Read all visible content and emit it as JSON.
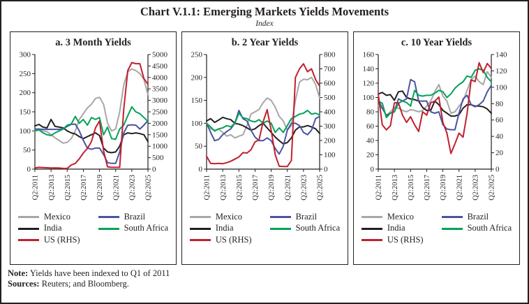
{
  "header": {
    "title": "Chart V.1.1: Emerging Markets Yields Movements",
    "subtitle": "Index"
  },
  "colors": {
    "mexico": "#a7a7aa",
    "india": "#231f20",
    "us": "#c0202e",
    "brazil": "#4b53a4",
    "south_africa": "#00a356",
    "axis": "#231f20"
  },
  "legend": {
    "items": [
      {
        "label": "Mexico",
        "color": "mexico"
      },
      {
        "label": "Brazil",
        "color": "brazil"
      },
      {
        "label": "India",
        "color": "india"
      },
      {
        "label": "South Africa",
        "color": "south_africa"
      },
      {
        "label": "US (RHS)",
        "color": "us"
      }
    ]
  },
  "notes": {
    "note_label": "Note:",
    "note_text": "Yields have been indexed to Q1 of 2011",
    "sources_label": "Sources:",
    "sources_text": "Reuters; and Bloomberg."
  },
  "chart_data": [
    {
      "type": "line",
      "title": "a. 3 Month Yields",
      "x_tick_labels": [
        "Q2:2011",
        "Q2:2013",
        "Q2:2015",
        "Q2:2017",
        "Q2:2019",
        "Q2:2021",
        "Q2:2023",
        "Q2:2025"
      ],
      "x_note": "29 semi-annual points from Q2 2011 to Q2 2025; tick labels every 2 years",
      "left_axis": {
        "min": 0,
        "max": 300,
        "step": 50
      },
      "right_axis": {
        "min": 0,
        "max": 5000,
        "step": 500
      },
      "series": [
        {
          "name": "Mexico",
          "color": "mexico",
          "axis": "left",
          "values": [
            100,
            102,
            100,
            98,
            90,
            82,
            75,
            68,
            70,
            80,
            100,
            130,
            145,
            160,
            170,
            185,
            188,
            170,
            120,
            100,
            105,
            150,
            220,
            255,
            262,
            258,
            250,
            235,
            195
          ]
        },
        {
          "name": "India",
          "color": "india",
          "axis": "left",
          "values": [
            113,
            117,
            110,
            108,
            130,
            112,
            110,
            108,
            100,
            95,
            92,
            85,
            80,
            85,
            90,
            95,
            88,
            55,
            45,
            43,
            45,
            60,
            90,
            95,
            93,
            95,
            93,
            90,
            72
          ]
        },
        {
          "name": "Brazil",
          "color": "brazil",
          "axis": "left",
          "values": [
            105,
            105,
            104,
            104,
            104,
            104,
            104,
            105,
            112,
            117,
            118,
            100,
            75,
            55,
            52,
            55,
            55,
            38,
            17,
            15,
            15,
            45,
            95,
            115,
            116,
            115,
            105,
            115,
            127
          ]
        },
        {
          "name": "South Africa",
          "color": "south_africa",
          "axis": "left",
          "values": [
            100,
            103,
            95,
            90,
            88,
            95,
            100,
            105,
            115,
            118,
            138,
            120,
            130,
            115,
            135,
            130,
            135,
            90,
            110,
            80,
            78,
            105,
            115,
            140,
            163,
            150,
            145,
            135,
            125
          ]
        },
        {
          "name": "US (RHS)",
          "color": "us",
          "axis": "right",
          "values": [
            50,
            80,
            70,
            60,
            50,
            55,
            50,
            30,
            30,
            180,
            250,
            450,
            700,
            900,
            1200,
            1800,
            2100,
            800,
            100,
            80,
            80,
            80,
            2600,
            4300,
            4650,
            4600,
            4600,
            3950,
            3700
          ]
        }
      ]
    },
    {
      "type": "line",
      "title": "b. 2 Year Yields",
      "x_tick_labels": [
        "Q2:2011",
        "Q2:2013",
        "Q2:2015",
        "Q2:2017",
        "Q2:2019",
        "Q2:2021",
        "Q2:2023",
        "Q2:2025"
      ],
      "x_note": "29 semi-annual points from Q2 2011 to Q2 2025; tick labels every 2 years",
      "left_axis": {
        "min": 0,
        "max": 250,
        "step": 50
      },
      "right_axis": {
        "min": 0,
        "max": 800,
        "step": 100
      },
      "series": [
        {
          "name": "Mexico",
          "color": "mexico",
          "axis": "left",
          "values": [
            100,
            88,
            85,
            87,
            80,
            72,
            75,
            68,
            72,
            75,
            95,
            120,
            125,
            130,
            145,
            155,
            150,
            135,
            115,
            105,
            85,
            95,
            150,
            190,
            196,
            195,
            200,
            185,
            155
          ]
        },
        {
          "name": "India",
          "color": "india",
          "axis": "left",
          "values": [
            105,
            110,
            102,
            107,
            113,
            110,
            108,
            100,
            98,
            95,
            90,
            85,
            88,
            95,
            100,
            90,
            80,
            70,
            62,
            55,
            58,
            68,
            85,
            92,
            92,
            95,
            92,
            88,
            78
          ]
        },
        {
          "name": "Brazil",
          "color": "brazil",
          "axis": "left",
          "values": [
            100,
            80,
            62,
            65,
            75,
            82,
            88,
            100,
            128,
            110,
            105,
            85,
            70,
            62,
            62,
            68,
            62,
            45,
            33,
            50,
            85,
            100,
            100,
            95,
            80,
            75,
            85,
            110,
            115
          ]
        },
        {
          "name": "South Africa",
          "color": "south_africa",
          "axis": "left",
          "values": [
            100,
            92,
            83,
            88,
            90,
            95,
            92,
            100,
            122,
            112,
            110,
            105,
            103,
            108,
            100,
            105,
            100,
            80,
            90,
            80,
            95,
            110,
            115,
            120,
            122,
            128,
            120,
            122,
            118
          ]
        },
        {
          "name": "US (RHS)",
          "color": "us",
          "axis": "right",
          "values": [
            90,
            40,
            38,
            40,
            38,
            45,
            55,
            70,
            85,
            115,
            112,
            135,
            190,
            205,
            330,
            415,
            270,
            100,
            20,
            18,
            18,
            60,
            640,
            700,
            735,
            680,
            700,
            625,
            580
          ]
        }
      ]
    },
    {
      "type": "line",
      "title": "c. 10 Year Yields",
      "x_tick_labels": [
        "Q2:2011",
        "Q2:2013",
        "Q2:2015",
        "Q2:2017",
        "Q2:2019",
        "Q2:2021",
        "Q2:2023",
        "Q2:2025"
      ],
      "x_note": "29 semi-annual points from Q2 2011 to Q2 2025; tick labels every 2 years",
      "left_axis": {
        "min": 0,
        "max": 160,
        "step": 20
      },
      "right_axis": {
        "min": 0,
        "max": 140,
        "step": 20
      },
      "series": [
        {
          "name": "Mexico",
          "color": "mexico",
          "axis": "left",
          "values": [
            88,
            85,
            75,
            80,
            86,
            85,
            82,
            80,
            83,
            82,
            80,
            82,
            88,
            95,
            108,
            118,
            102,
            95,
            78,
            80,
            88,
            95,
            110,
            125,
            130,
            122,
            118,
            136,
            128
          ]
        },
        {
          "name": "India",
          "color": "india",
          "axis": "left",
          "values": [
            105,
            107,
            103,
            104,
            96,
            108,
            109,
            100,
            98,
            97,
            95,
            86,
            82,
            82,
            95,
            90,
            82,
            78,
            74,
            74,
            76,
            85,
            90,
            90,
            88,
            88,
            87,
            84,
            78
          ]
        },
        {
          "name": "Brazil",
          "color": "brazil",
          "axis": "left",
          "values": [
            97,
            85,
            75,
            78,
            80,
            98,
            95,
            98,
            125,
            122,
            95,
            95,
            95,
            80,
            78,
            80,
            62,
            56,
            55,
            55,
            78,
            98,
            103,
            90,
            87,
            90,
            95,
            108,
            117
          ]
        },
        {
          "name": "South Africa",
          "color": "south_africa",
          "axis": "left",
          "values": [
            95,
            92,
            72,
            78,
            80,
            92,
            95,
            93,
            88,
            110,
            103,
            102,
            103,
            103,
            106,
            110,
            108,
            100,
            105,
            113,
            118,
            122,
            130,
            128,
            138,
            140,
            138,
            128,
            122
          ]
        },
        {
          "name": "US (RHS)",
          "color": "us",
          "axis": "right",
          "values": [
            92,
            54,
            48,
            53,
            81,
            81,
            66,
            57,
            64,
            54,
            46,
            70,
            66,
            81,
            83,
            88,
            57,
            44,
            19,
            31,
            44,
            39,
            68,
            109,
            107,
            130,
            118,
            129,
            123
          ]
        }
      ]
    }
  ]
}
